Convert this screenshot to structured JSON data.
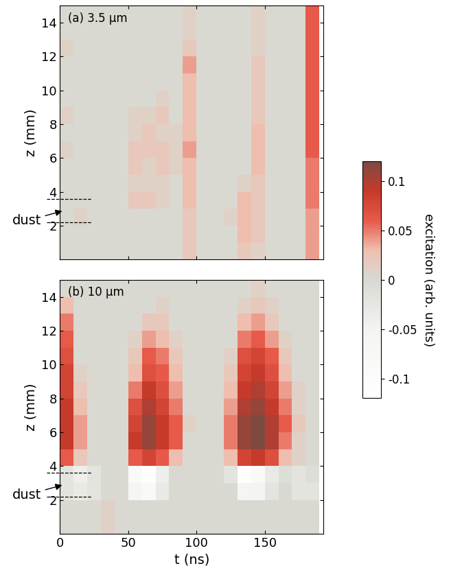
{
  "chart_data": [
    {
      "type": "heatmap",
      "title": "(a) 3.5 μm",
      "ylabel": "z (mm)",
      "tick_labels": "y",
      "xlim": [
        0,
        193
      ],
      "xticks": [
        0,
        50,
        100,
        150
      ],
      "ylim": [
        0,
        15
      ],
      "yticks": [
        2,
        4,
        6,
        8,
        10,
        12,
        14
      ],
      "annotation": "dust",
      "dust_band": [
        2.2,
        3.6
      ],
      "x": [
        5,
        15,
        25,
        35,
        45,
        55,
        65,
        75,
        85,
        95,
        105,
        115,
        125,
        135,
        145,
        155,
        165,
        175,
        185
      ],
      "y": [
        0.5,
        1.5,
        2.5,
        3.5,
        4.5,
        5.5,
        6.5,
        7.5,
        8.5,
        9.5,
        10.5,
        11.5,
        12.5,
        13.5,
        14.5
      ],
      "cells": [
        [
          0,
          0,
          0,
          0,
          0,
          0,
          0,
          0,
          0,
          0.02,
          0,
          0,
          0,
          0.02,
          0.01,
          0,
          0,
          0,
          0.04
        ],
        [
          0,
          0,
          0,
          0,
          0,
          0,
          0,
          0,
          0,
          0.02,
          0,
          0,
          0,
          0.03,
          0.02,
          0,
          0,
          0,
          0.04
        ],
        [
          0,
          0.01,
          0,
          0,
          0,
          0,
          0,
          0,
          0,
          0.02,
          0,
          0,
          0.01,
          0.03,
          0.02,
          0,
          0,
          0,
          0.04
        ],
        [
          0,
          0,
          0,
          0,
          0,
          0.02,
          0.02,
          0.01,
          0,
          0.03,
          0,
          0,
          0,
          0.03,
          0.02,
          0,
          0,
          0,
          0.05
        ],
        [
          0,
          0,
          0,
          0,
          0,
          0.01,
          0.01,
          0.01,
          0,
          0.03,
          0,
          0,
          0,
          0.01,
          0.02,
          0,
          0,
          0,
          0.05
        ],
        [
          0,
          0,
          0,
          0,
          0,
          0.02,
          0.01,
          0.02,
          0.01,
          0.03,
          0,
          0,
          0,
          0,
          0.03,
          0,
          0,
          0,
          0.05
        ],
        [
          0.01,
          0,
          0,
          0,
          0,
          0.02,
          0.02,
          0.02,
          0.01,
          0.04,
          0,
          0,
          0,
          0,
          0.03,
          0,
          0,
          0,
          0.06
        ],
        [
          0,
          0,
          0,
          0,
          0,
          0.01,
          0.02,
          0.01,
          0.01,
          0.03,
          0,
          0,
          0,
          0,
          0.03,
          0,
          0,
          0,
          0.06
        ],
        [
          0.01,
          0,
          0,
          0,
          0,
          0.01,
          0.01,
          0.02,
          0,
          0.03,
          0,
          0,
          0,
          0,
          0.02,
          0,
          0,
          0,
          0.06
        ],
        [
          0,
          0,
          0,
          0,
          0,
          0,
          0,
          0.01,
          0,
          0.03,
          0,
          0,
          0,
          0,
          0.02,
          0,
          0,
          0,
          0.06
        ],
        [
          0,
          0,
          0,
          0,
          0,
          0,
          0,
          0,
          0,
          0.03,
          0,
          0,
          0,
          0,
          0.02,
          0,
          0,
          0,
          0.06
        ],
        [
          0,
          0,
          0,
          0,
          0,
          0,
          0,
          0,
          0,
          0.04,
          0,
          0,
          0,
          0,
          0.02,
          0,
          0,
          0,
          0.06
        ],
        [
          0.01,
          0,
          0,
          0,
          0,
          0,
          0,
          0,
          0,
          0.02,
          0,
          0,
          0,
          0,
          0.01,
          0,
          0,
          0,
          0.06
        ],
        [
          0,
          0,
          0,
          0,
          0,
          0,
          0,
          0,
          0,
          0.01,
          0,
          0,
          0,
          0,
          0.01,
          0,
          0,
          0,
          0.06
        ],
        [
          0,
          0,
          0,
          0,
          0,
          0,
          0,
          0,
          0,
          0.01,
          0,
          0,
          0,
          0,
          0.01,
          0,
          0,
          0,
          0.06
        ]
      ]
    },
    {
      "type": "heatmap",
      "title": "(b) 10 μm",
      "xlabel": "t (ns)",
      "ylabel": "z (mm)",
      "xlim": [
        0,
        193
      ],
      "xticks": [
        0,
        50,
        100,
        150
      ],
      "ylim": [
        0,
        15
      ],
      "yticks": [
        2,
        4,
        6,
        8,
        10,
        12,
        14
      ],
      "annotation": "dust",
      "dust_band": [
        2.2,
        3.6
      ],
      "x": [
        5,
        15,
        25,
        35,
        45,
        55,
        65,
        75,
        85,
        95,
        105,
        115,
        125,
        135,
        145,
        155,
        165,
        175,
        185
      ],
      "y": [
        0.5,
        1.5,
        2.5,
        3.5,
        4.5,
        5.5,
        6.5,
        7.5,
        8.5,
        9.5,
        10.5,
        11.5,
        12.5,
        13.5,
        14.5
      ],
      "cells": [
        [
          0,
          0,
          0,
          0.01,
          0,
          0,
          0,
          0,
          0,
          0,
          0,
          0,
          0,
          0,
          0,
          0,
          0,
          0,
          0
        ],
        [
          0,
          0,
          0,
          0.01,
          0,
          0,
          0,
          0,
          0,
          0,
          0,
          0,
          0,
          0,
          0,
          0,
          0,
          0,
          0
        ],
        [
          -0.02,
          -0.03,
          -0.02,
          0,
          0,
          -0.06,
          -0.08,
          -0.03,
          0,
          0,
          0,
          0,
          0,
          -0.06,
          -0.05,
          -0.02,
          0,
          -0.02,
          -0.02
        ],
        [
          -0.02,
          -0.04,
          -0.02,
          0,
          0,
          -0.08,
          -0.11,
          -0.04,
          0,
          0,
          0,
          0,
          -0.02,
          -0.11,
          -0.08,
          -0.03,
          -0.01,
          -0.02,
          -0.01
        ],
        [
          0.06,
          0.02,
          0,
          0,
          0,
          0.06,
          0.08,
          0.06,
          0.03,
          0,
          0,
          0,
          0.03,
          0.08,
          0.09,
          0.07,
          0.03,
          0.01,
          0
        ],
        [
          0.09,
          0.04,
          0,
          0,
          0,
          0.09,
          0.11,
          0.09,
          0.06,
          0,
          0,
          0,
          0.05,
          0.11,
          0.12,
          0.1,
          0.05,
          0.01,
          0
        ],
        [
          0.09,
          0.04,
          0,
          0,
          0,
          0.08,
          0.11,
          0.09,
          0.06,
          0.01,
          0,
          0,
          0.05,
          0.11,
          0.12,
          0.1,
          0.06,
          0.02,
          0
        ],
        [
          0.09,
          0.03,
          0,
          0,
          0,
          0.07,
          0.1,
          0.08,
          0.05,
          0,
          0,
          0,
          0.04,
          0.1,
          0.11,
          0.09,
          0.05,
          0.01,
          0
        ],
        [
          0.08,
          0.02,
          0,
          0,
          0,
          0.05,
          0.09,
          0.07,
          0.04,
          0,
          0,
          0,
          0.03,
          0.09,
          0.1,
          0.08,
          0.04,
          0.01,
          0
        ],
        [
          0.08,
          0.01,
          0,
          0,
          0,
          0.03,
          0.07,
          0.06,
          0.03,
          0,
          0,
          0,
          0.02,
          0.08,
          0.09,
          0.07,
          0.03,
          0,
          0
        ],
        [
          0.07,
          0,
          0,
          0,
          0,
          0.02,
          0.06,
          0.05,
          0.02,
          0,
          0,
          0,
          0.01,
          0.07,
          0.08,
          0.06,
          0.02,
          0,
          0
        ],
        [
          0.06,
          0,
          0,
          0,
          0,
          0.01,
          0.04,
          0.03,
          0.01,
          0,
          0,
          0,
          0,
          0.05,
          0.06,
          0.04,
          0.01,
          0,
          0
        ],
        [
          0.05,
          0,
          0,
          0,
          0,
          0,
          0.02,
          0.02,
          0,
          0,
          0,
          0,
          0,
          0.03,
          0.04,
          0.02,
          0,
          0,
          0
        ],
        [
          0.03,
          0,
          0,
          0,
          0,
          0,
          0,
          0.01,
          0,
          0,
          0,
          0,
          0,
          0.01,
          0.02,
          0.01,
          0,
          0,
          0
        ],
        [
          0,
          0,
          0,
          0,
          0,
          0,
          0,
          0,
          0,
          0,
          0,
          0,
          0,
          0,
          0.01,
          0,
          0,
          0,
          0
        ]
      ]
    }
  ],
  "colorbar": {
    "label": "excitation (arb. units)",
    "range": [
      -0.12,
      0.12
    ],
    "ticks": [
      -0.1,
      -0.05,
      0,
      0.05,
      0.1
    ]
  }
}
